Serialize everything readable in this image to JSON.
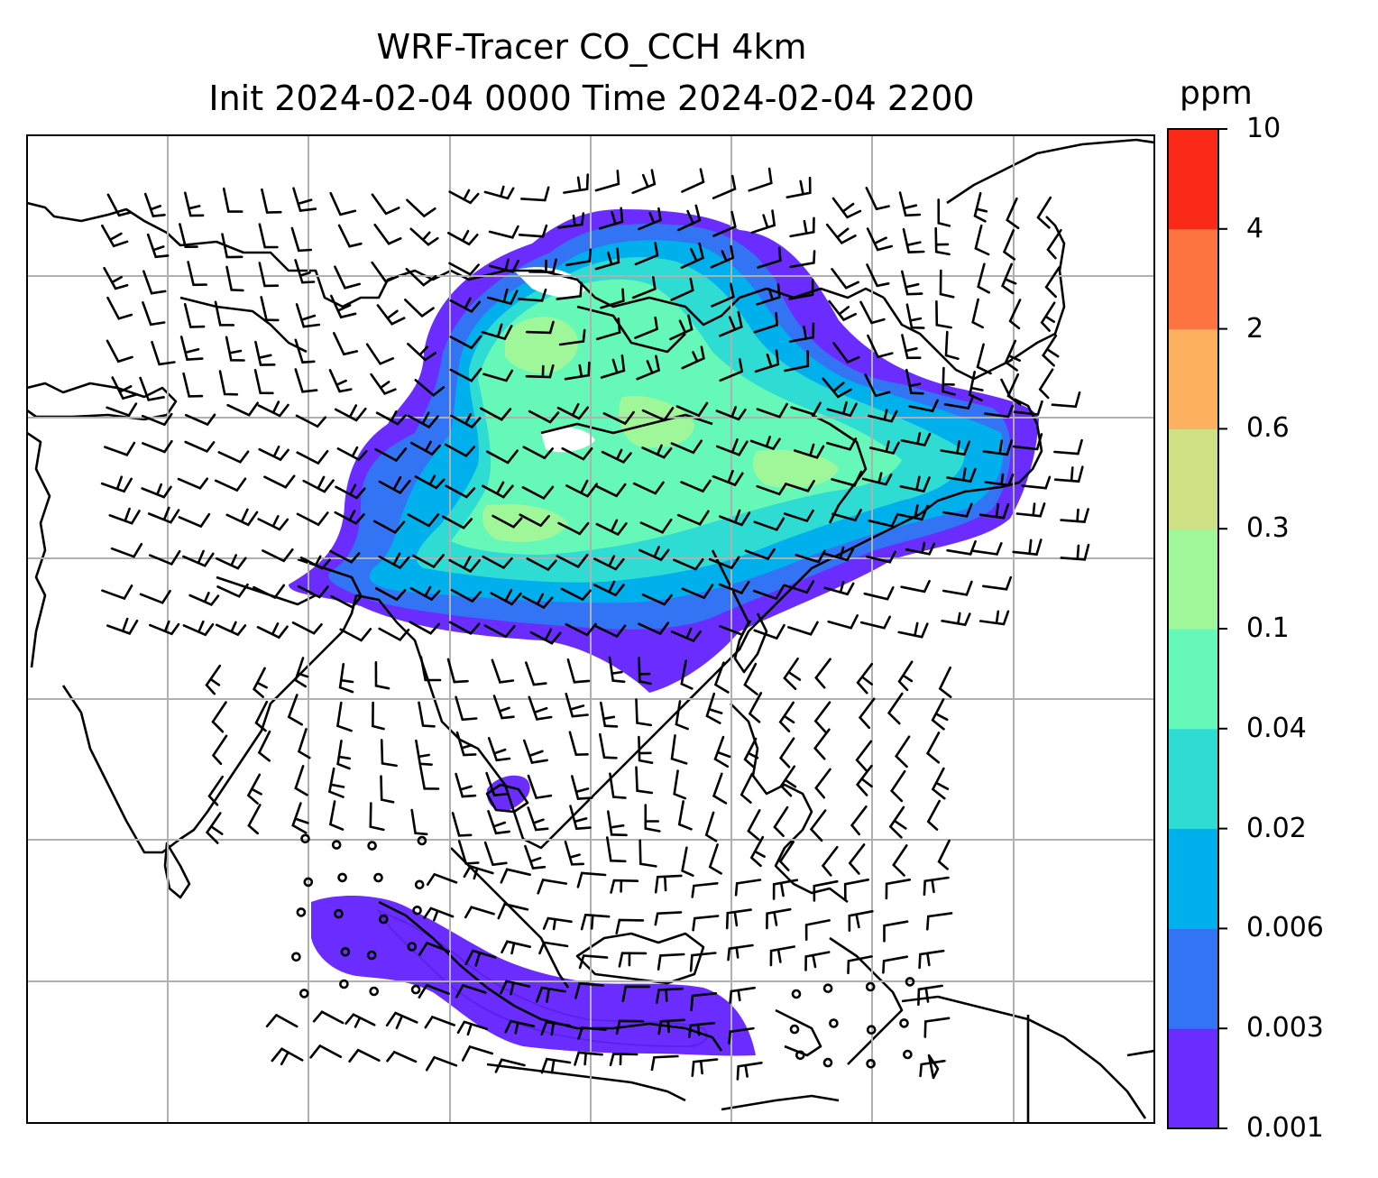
{
  "title": {
    "line1": "WRF-Tracer CO_CCH 4km",
    "line2": "Init 2024-02-04 0000 Time 2024-02-04 2200"
  },
  "colorbar": {
    "unit": "ppm",
    "levels": [
      "0.001",
      "0.003",
      "0.006",
      "0.02",
      "0.04",
      "0.1",
      "0.3",
      "0.6",
      "2",
      "4",
      "10"
    ],
    "colors": [
      "#6a2cff",
      "#3374f5",
      "#00b0ec",
      "#2fdcd4",
      "#66f8b8",
      "#a0f79a",
      "#d0e085",
      "#fdb060",
      "#fd7440",
      "#fb2a18"
    ]
  },
  "map": {
    "gridlines": true,
    "grid_columns": 8,
    "grid_rows": 7,
    "coastline_color": "#000000",
    "gridline_color": "#b0b0b0"
  }
}
